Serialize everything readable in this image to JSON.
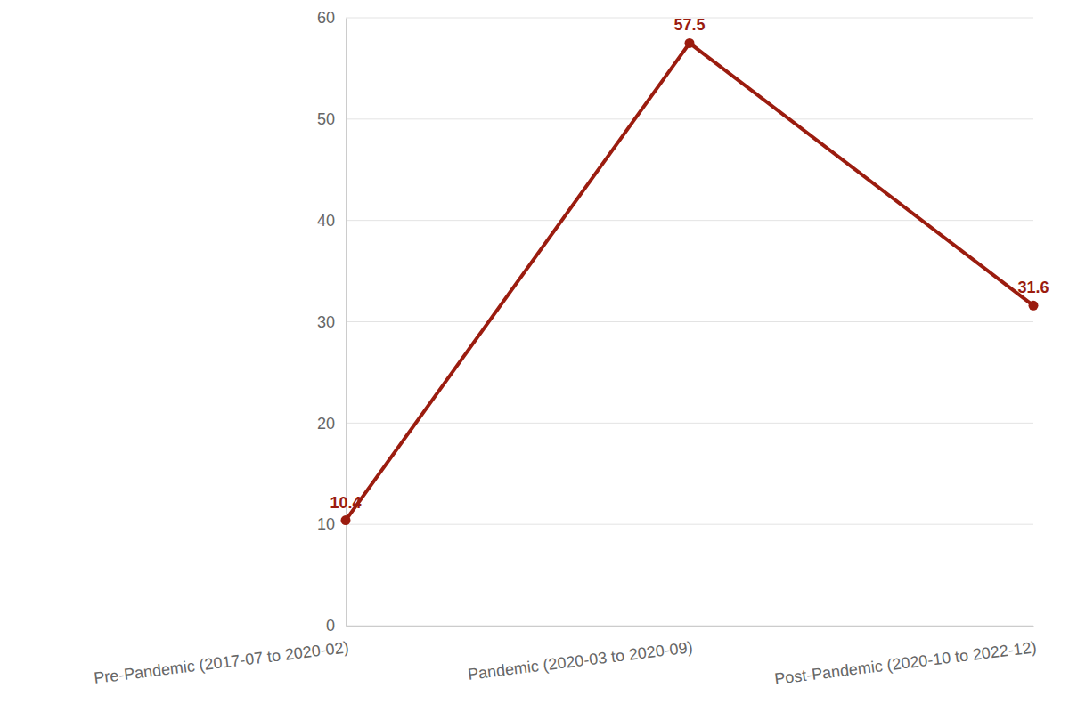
{
  "chart_data": {
    "type": "line",
    "categories": [
      "Pre-Pandemic (2017-07 to 2020-02)",
      "Pandemic (2020-03 to 2020-09)",
      "Post-Pandemic (2020-10 to 2022-12)"
    ],
    "values": [
      10.4,
      57.5,
      31.6
    ],
    "color": "#9b1c0f",
    "marker": "circle",
    "ylim": [
      0,
      60
    ],
    "yticks": [
      0,
      10,
      20,
      30,
      40,
      50,
      60
    ],
    "grid": true,
    "data_labels": true
  }
}
